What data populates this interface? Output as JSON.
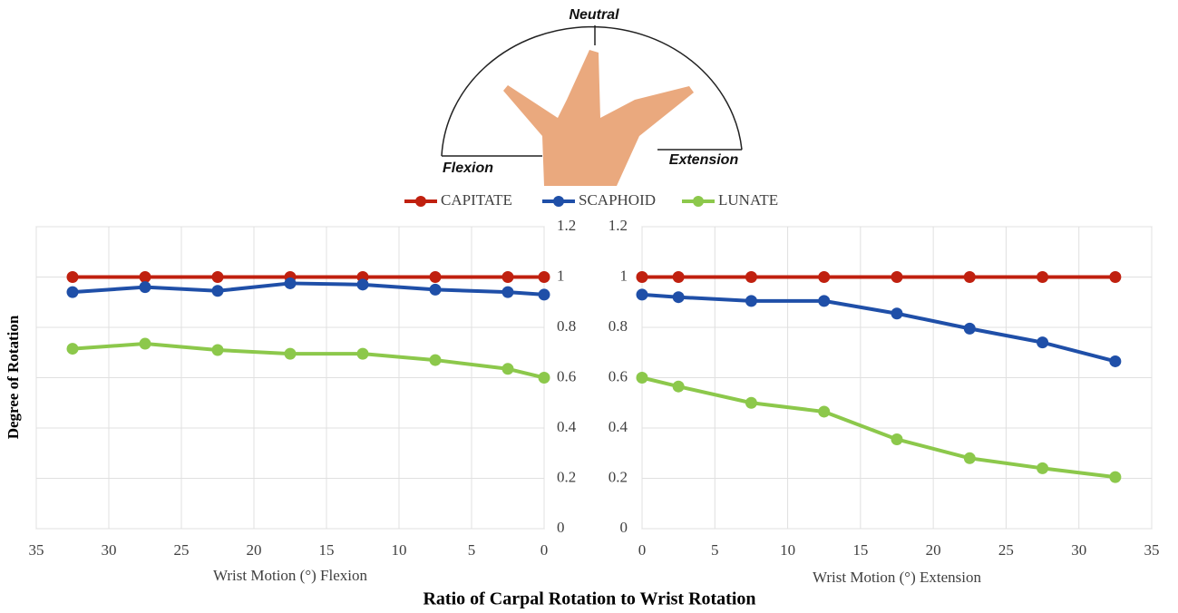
{
  "diagram": {
    "top": "Neutral",
    "left": "Flexion",
    "right": "Extension"
  },
  "chart_data": [
    {
      "type": "line",
      "title": "Ratio of Carpal Rotation to Wrist Rotation",
      "ylabel": "Degree of Rotation",
      "xlabel": "Wrist Motion (°) Flexion",
      "x": [
        32.5,
        27.5,
        22.5,
        17.5,
        12.5,
        7.5,
        2.5,
        0
      ],
      "xlim": [
        35,
        0
      ],
      "xticks": [
        35,
        30,
        25,
        20,
        15,
        10,
        5,
        0
      ],
      "ylim": [
        0,
        1.2
      ],
      "yticks": [
        0,
        0.2,
        0.4,
        0.6,
        0.8,
        1,
        1.2
      ],
      "grid": true,
      "series": [
        {
          "name": "CAPITATE",
          "color": "#c0200f",
          "values": [
            1,
            1,
            1,
            1,
            1,
            1,
            1,
            1
          ]
        },
        {
          "name": "SCAPHOID",
          "color": "#1f4fa8",
          "values": [
            0.94,
            0.96,
            0.945,
            0.975,
            0.97,
            0.95,
            0.94,
            0.93
          ]
        },
        {
          "name": "LUNATE",
          "color": "#8cc84b",
          "values": [
            0.715,
            0.735,
            0.71,
            0.695,
            0.695,
            0.67,
            0.635,
            0.6
          ]
        }
      ]
    },
    {
      "type": "line",
      "xlabel": "Wrist Motion (°) Extension",
      "x": [
        0,
        2.5,
        7.5,
        12.5,
        17.5,
        22.5,
        27.5,
        32.5
      ],
      "xlim": [
        0,
        35
      ],
      "xticks": [
        0,
        5,
        10,
        15,
        20,
        25,
        30,
        35
      ],
      "ylim": [
        0,
        1.2
      ],
      "yticks": [
        0,
        0.2,
        0.4,
        0.6,
        0.8,
        1,
        1.2
      ],
      "grid": true,
      "series": [
        {
          "name": "CAPITATE",
          "color": "#c0200f",
          "values": [
            1,
            1,
            1,
            1,
            1,
            1,
            1,
            1
          ]
        },
        {
          "name": "SCAPHOID",
          "color": "#1f4fa8",
          "values": [
            0.93,
            0.92,
            0.905,
            0.905,
            0.855,
            0.795,
            0.74,
            0.665
          ]
        },
        {
          "name": "LUNATE",
          "color": "#8cc84b",
          "values": [
            0.6,
            0.565,
            0.5,
            0.465,
            0.355,
            0.28,
            0.24,
            0.205
          ]
        }
      ]
    }
  ]
}
